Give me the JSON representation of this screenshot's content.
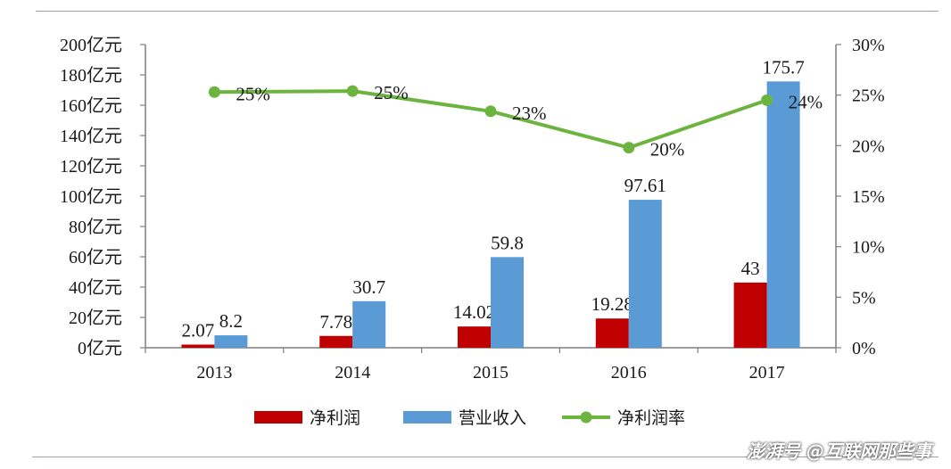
{
  "chart_data": {
    "type": "bar",
    "categories": [
      "2013",
      "2014",
      "2015",
      "2016",
      "2017"
    ],
    "series": [
      {
        "name": "净利润",
        "type": "bar",
        "axis": "left",
        "color": "#c00000",
        "values": [
          2.07,
          7.78,
          14.02,
          19.28,
          43
        ],
        "labels": [
          "2.07",
          "7.78",
          "14.02",
          "19.28",
          "43"
        ]
      },
      {
        "name": "营业收入",
        "type": "bar",
        "axis": "left",
        "color": "#5b9bd5",
        "values": [
          8.2,
          30.7,
          59.8,
          97.61,
          175.7
        ],
        "labels": [
          "8.2",
          "30.7",
          "59.8",
          "97.61",
          "175.7"
        ]
      },
      {
        "name": "净利润率",
        "type": "line",
        "axis": "right",
        "color": "#6db33f",
        "values": [
          25.3,
          25.4,
          23.4,
          19.8,
          24.5
        ],
        "labels": [
          "25%",
          "25%",
          "23%",
          "20%",
          "24%"
        ]
      }
    ],
    "y_left": {
      "ylim": [
        0,
        200
      ],
      "ticks": [
        0,
        20,
        40,
        60,
        80,
        100,
        120,
        140,
        160,
        180,
        200
      ],
      "tick_labels": [
        "0亿元",
        "20亿元",
        "40亿元",
        "60亿元",
        "80亿元",
        "100亿元",
        "120亿元",
        "140亿元",
        "160亿元",
        "180亿元",
        "200亿元"
      ]
    },
    "y_right": {
      "ylim": [
        0,
        30
      ],
      "ticks": [
        0,
        5,
        10,
        15,
        20,
        25,
        30
      ],
      "tick_labels": [
        "0%",
        "5%",
        "10%",
        "15%",
        "20%",
        "25%",
        "30%"
      ]
    },
    "grid": false,
    "legend_position": "bottom"
  },
  "watermark": "澎湃号 @互联网那些事",
  "colors": {
    "frame": "#7f7f7f",
    "label": "#1a1a1a"
  }
}
